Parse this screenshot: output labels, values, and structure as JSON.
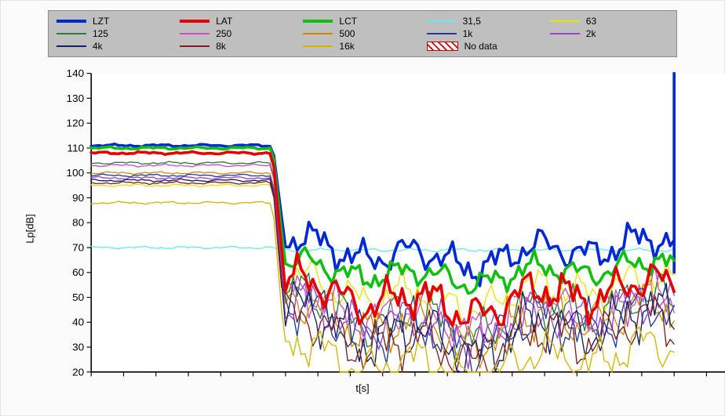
{
  "chart": {
    "type": "line",
    "xlabel": "t[s]",
    "ylabel": "Lp[dB]",
    "xlim": [
      0,
      100
    ],
    "ylim": [
      20,
      140
    ],
    "ytick_step": 10,
    "xtick_step_minor": 5,
    "background_color": "#ffffff",
    "axis_color": "#000000",
    "tick_fontsize": 12,
    "label_fontsize": 13,
    "legend": {
      "bg": "#bfbfbf",
      "border": "#8a8a8a",
      "items": [
        {
          "label": "LZT",
          "color": "#0028d4",
          "thick": true
        },
        {
          "label": "LAT",
          "color": "#e60000",
          "thick": true
        },
        {
          "label": "LCT",
          "color": "#10c010",
          "thick": true
        },
        {
          "label": "31,5",
          "color": "#6ce8e8",
          "thick": false
        },
        {
          "label": "63",
          "color": "#e6e600",
          "thick": false
        },
        {
          "label": "125",
          "color": "#2e7a3a",
          "thick": false
        },
        {
          "label": "250",
          "color": "#c84dc8",
          "thick": false
        },
        {
          "label": "500",
          "color": "#d08a00",
          "thick": false
        },
        {
          "label": "1k",
          "color": "#243a9a",
          "thick": false
        },
        {
          "label": "2k",
          "color": "#a040d0",
          "thick": false
        },
        {
          "label": "4k",
          "color": "#122060",
          "thick": false
        },
        {
          "label": "8k",
          "color": "#7a2020",
          "thick": false
        },
        {
          "label": "16k",
          "color": "#d4b400",
          "thick": false
        },
        {
          "label": "No data",
          "color": "#c00",
          "thick": false,
          "nodata": true
        }
      ]
    },
    "series": [
      {
        "key": "LZT",
        "color": "#0028d4",
        "width": 3.2,
        "high": 111,
        "low_base": 68,
        "amp": 9,
        "spike": true
      },
      {
        "key": "LCT",
        "color": "#10c010",
        "width": 3.2,
        "high": 110,
        "low_base": 60,
        "amp": 7
      },
      {
        "key": "LAT",
        "color": "#e60000",
        "width": 3.2,
        "high": 108,
        "low_base": 50,
        "amp": 11
      },
      {
        "key": "31,5",
        "color": "#6ce8e8",
        "width": 1.2,
        "high": 70,
        "low_base": 69,
        "amp": 1.8,
        "flat_after": true
      },
      {
        "key": "63",
        "color": "#e6e600",
        "width": 1.2,
        "high": 95,
        "low_base": 52,
        "amp": 10
      },
      {
        "key": "125",
        "color": "#2e7a3a",
        "width": 1.2,
        "high": 104,
        "low_base": 43,
        "amp": 13
      },
      {
        "key": "250",
        "color": "#c84dc8",
        "width": 1.2,
        "high": 103,
        "low_base": 44,
        "amp": 12
      },
      {
        "key": "500",
        "color": "#d08a00",
        "width": 1.2,
        "high": 100,
        "low_base": 40,
        "amp": 13
      },
      {
        "key": "1k",
        "color": "#243a9a",
        "width": 1.2,
        "high": 99,
        "low_base": 38,
        "amp": 14
      },
      {
        "key": "2k",
        "color": "#a040d0",
        "width": 1.2,
        "high": 98,
        "low_base": 41,
        "amp": 12
      },
      {
        "key": "4k",
        "color": "#122060",
        "width": 1.2,
        "high": 97,
        "low_base": 36,
        "amp": 15
      },
      {
        "key": "8k",
        "color": "#7a2020",
        "width": 1.2,
        "high": 96,
        "low_base": 33,
        "amp": 14
      },
      {
        "key": "16k",
        "color": "#d4b400",
        "width": 1.2,
        "high": 88,
        "low_base": 24,
        "amp": 12
      }
    ],
    "transition_x": 28,
    "noise_end_x": 90,
    "spike_x": 90
  }
}
